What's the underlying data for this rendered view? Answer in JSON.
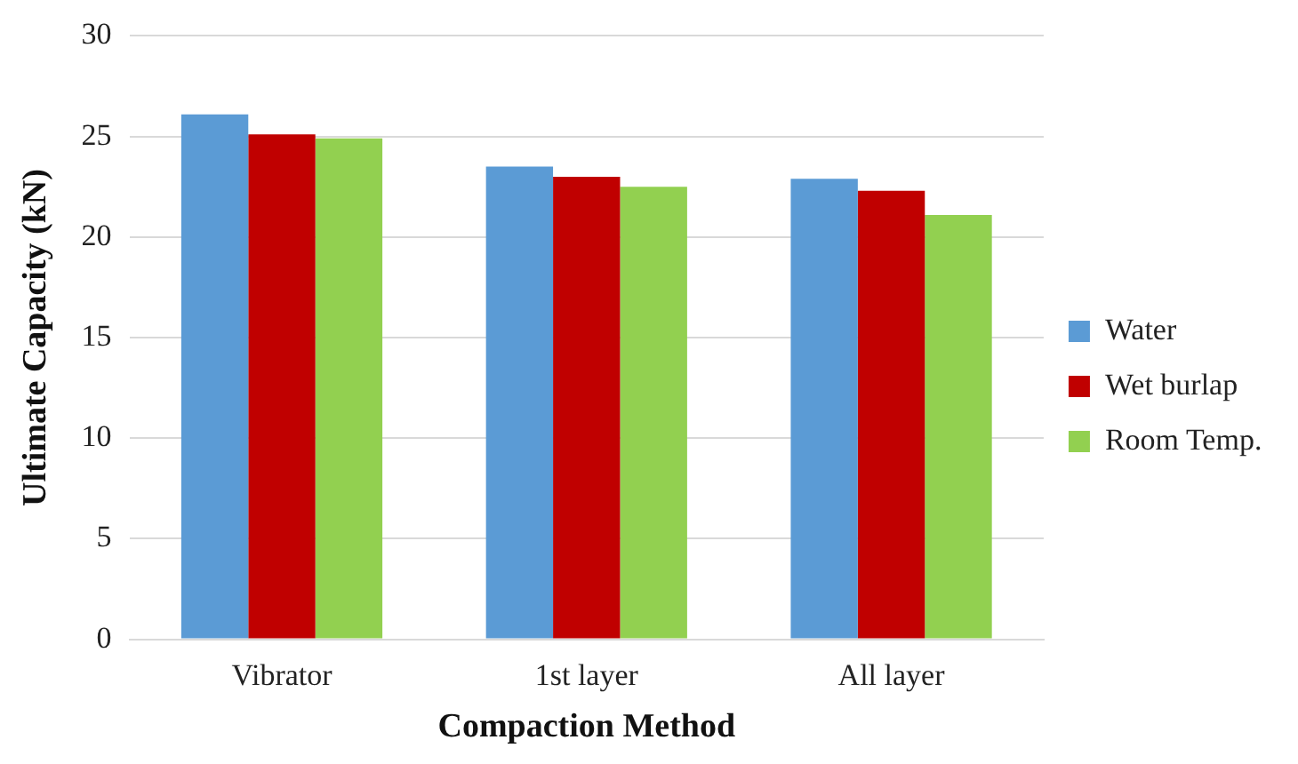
{
  "chart_data": {
    "type": "bar",
    "xlabel": "Compaction Method",
    "ylabel": "Ultimate Capacity (kN)",
    "categories": [
      "Vibrator",
      "1st layer",
      "All layer"
    ],
    "series": [
      {
        "name": "Water",
        "color": "#5b9bd5",
        "values": [
          26.1,
          23.5,
          22.9
        ]
      },
      {
        "name": "Wet burlap",
        "color": "#c00000",
        "values": [
          25.1,
          23.0,
          22.3
        ]
      },
      {
        "name": "Room Temp.",
        "color": "#92d050",
        "values": [
          24.9,
          22.5,
          21.1
        ]
      }
    ],
    "ylim": [
      0,
      30
    ],
    "yticks": [
      0,
      5,
      10,
      15,
      20,
      25,
      30
    ],
    "grid": "y",
    "legend": "right"
  }
}
